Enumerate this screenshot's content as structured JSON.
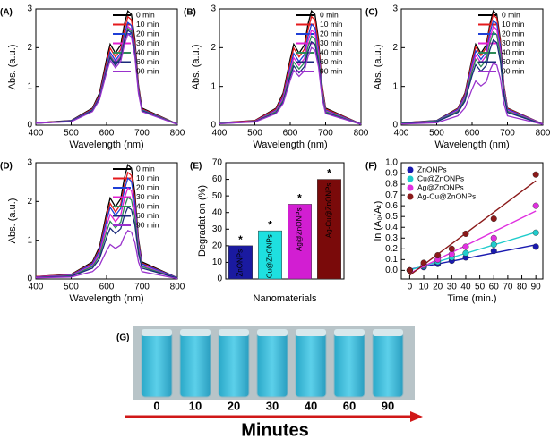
{
  "chart_data": [
    {
      "type": "line",
      "label": "(A)",
      "xlabel": "Wavelength (nm)",
      "ylabel": "Abs. (a.u.)",
      "x": [
        400,
        500,
        560,
        580,
        600,
        610,
        625,
        640,
        650,
        660,
        670,
        680,
        690,
        700,
        800
      ],
      "xlim": [
        400,
        800
      ],
      "xticks": [
        400,
        500,
        600,
        700,
        800
      ],
      "ylim": [
        0,
        3
      ],
      "yticks": [
        0,
        1,
        2,
        3
      ],
      "legend": "top-right",
      "series": [
        {
          "name": "0 min",
          "color": "#000000",
          "values": [
            0.06,
            0.12,
            0.44,
            0.83,
            1.71,
            2.09,
            1.86,
            2.07,
            2.6,
            2.95,
            2.86,
            2.21,
            1.03,
            0.44,
            0.03
          ]
        },
        {
          "name": "10 min",
          "color": "#e41a1c",
          "values": [
            0.06,
            0.11,
            0.42,
            0.78,
            1.62,
            1.99,
            1.76,
            1.96,
            2.46,
            2.8,
            2.72,
            2.1,
            0.98,
            0.42,
            0.03
          ]
        },
        {
          "name": "20 min",
          "color": "#1f3fd6",
          "values": [
            0.05,
            0.11,
            0.4,
            0.74,
            1.54,
            1.88,
            1.67,
            1.86,
            2.33,
            2.65,
            2.57,
            1.99,
            0.93,
            0.4,
            0.03
          ]
        },
        {
          "name": "30 min",
          "color": "#e020d0",
          "values": [
            0.05,
            0.1,
            0.38,
            0.71,
            1.48,
            1.81,
            1.61,
            1.79,
            2.24,
            2.55,
            2.47,
            1.91,
            0.89,
            0.38,
            0.03
          ]
        },
        {
          "name": "40 min",
          "color": "#2e8b57",
          "values": [
            0.05,
            0.1,
            0.38,
            0.7,
            1.45,
            1.78,
            1.58,
            1.75,
            2.2,
            2.5,
            2.43,
            1.88,
            0.88,
            0.38,
            0.03
          ]
        },
        {
          "name": "60 min",
          "color": "#1a2a7a",
          "values": [
            0.05,
            0.1,
            0.37,
            0.69,
            1.42,
            1.74,
            1.54,
            1.72,
            2.16,
            2.45,
            2.38,
            1.84,
            0.86,
            0.37,
            0.02
          ]
        },
        {
          "name": "90 min",
          "color": "#9932cc",
          "values": [
            0.05,
            0.09,
            0.35,
            0.66,
            1.36,
            1.67,
            1.48,
            1.65,
            2.07,
            2.35,
            2.28,
            1.76,
            0.82,
            0.35,
            0.02
          ]
        }
      ]
    },
    {
      "type": "line",
      "label": "(B)",
      "xlabel": "Wavelength (nm)",
      "ylabel": "Abs. (a.u.)",
      "x": [
        400,
        500,
        560,
        580,
        600,
        610,
        625,
        640,
        650,
        660,
        670,
        680,
        690,
        700,
        800
      ],
      "xlim": [
        400,
        800
      ],
      "xticks": [
        400,
        500,
        600,
        700,
        800
      ],
      "ylim": [
        0,
        3
      ],
      "yticks": [
        0,
        1,
        2,
        3
      ],
      "legend": "top-right",
      "series": [
        {
          "name": "0 min",
          "color": "#000000",
          "values": [
            0.06,
            0.12,
            0.44,
            0.83,
            1.71,
            2.09,
            1.86,
            2.07,
            2.6,
            2.95,
            2.86,
            2.21,
            1.03,
            0.44,
            0.03
          ]
        },
        {
          "name": "10 min",
          "color": "#e41a1c",
          "values": [
            0.06,
            0.11,
            0.42,
            0.78,
            1.62,
            1.99,
            1.76,
            1.96,
            2.46,
            2.8,
            2.72,
            2.1,
            0.98,
            0.42,
            0.03
          ]
        },
        {
          "name": "20 min",
          "color": "#1f3fd6",
          "values": [
            0.05,
            0.1,
            0.39,
            0.73,
            1.51,
            1.85,
            1.64,
            1.82,
            2.29,
            2.6,
            2.52,
            1.95,
            0.91,
            0.39,
            0.03
          ]
        },
        {
          "name": "30 min",
          "color": "#e020d0",
          "values": [
            0.05,
            0.1,
            0.37,
            0.69,
            1.42,
            1.74,
            1.54,
            1.72,
            2.16,
            2.45,
            2.38,
            1.84,
            0.86,
            0.37,
            0.02
          ]
        },
        {
          "name": "40 min",
          "color": "#2e8b57",
          "values": [
            0.05,
            0.09,
            0.35,
            0.64,
            1.33,
            1.63,
            1.45,
            1.61,
            2.02,
            2.3,
            2.23,
            1.73,
            0.81,
            0.35,
            0.02
          ]
        },
        {
          "name": "60 min",
          "color": "#1a2a7a",
          "values": [
            0.04,
            0.09,
            0.32,
            0.6,
            1.25,
            1.53,
            1.35,
            1.51,
            1.89,
            2.15,
            2.09,
            1.61,
            0.75,
            0.32,
            0.02
          ]
        },
        {
          "name": "90 min",
          "color": "#9932cc",
          "values": [
            0.04,
            0.08,
            0.3,
            0.56,
            1.16,
            1.42,
            1.26,
            1.4,
            1.76,
            2.0,
            1.94,
            1.5,
            0.7,
            0.3,
            0.02
          ]
        }
      ]
    },
    {
      "type": "line",
      "label": "(C)",
      "xlabel": "Wavelength (nm)",
      "ylabel": "Abs. (a.u.)",
      "x": [
        400,
        500,
        560,
        580,
        600,
        610,
        625,
        640,
        650,
        660,
        670,
        680,
        690,
        700,
        800
      ],
      "xlim": [
        400,
        800
      ],
      "xticks": [
        400,
        500,
        600,
        700,
        800
      ],
      "ylim": [
        0,
        3
      ],
      "yticks": [
        0,
        1,
        2,
        3
      ],
      "legend": "top-right",
      "series": [
        {
          "name": "0 min",
          "color": "#000000",
          "values": [
            0.06,
            0.12,
            0.44,
            0.83,
            1.71,
            2.09,
            1.86,
            2.07,
            2.6,
            2.95,
            2.86,
            2.21,
            1.03,
            0.44,
            0.03
          ]
        },
        {
          "name": "10 min",
          "color": "#e41a1c",
          "values": [
            0.06,
            0.11,
            0.43,
            0.8,
            1.65,
            2.02,
            1.8,
            2.0,
            2.51,
            2.85,
            2.76,
            2.14,
            1.0,
            0.43,
            0.03
          ]
        },
        {
          "name": "20 min",
          "color": "#1f3fd6",
          "values": [
            0.05,
            0.11,
            0.41,
            0.76,
            1.57,
            1.92,
            1.7,
            1.89,
            2.38,
            2.7,
            2.62,
            2.03,
            0.95,
            0.41,
            0.03
          ]
        },
        {
          "name": "30 min",
          "color": "#e020d0",
          "values": [
            0.05,
            0.1,
            0.38,
            0.71,
            1.48,
            1.81,
            1.61,
            1.79,
            2.24,
            2.55,
            2.47,
            1.91,
            0.89,
            0.38,
            0.03
          ]
        },
        {
          "name": "40 min",
          "color": "#2e8b57",
          "values": [
            0.05,
            0.1,
            0.36,
            0.67,
            1.39,
            1.7,
            1.51,
            1.68,
            2.11,
            2.4,
            2.33,
            1.8,
            0.84,
            0.36,
            0.02
          ]
        },
        {
          "name": "60 min",
          "color": "#1a2a7a",
          "values": [
            0.04,
            0.09,
            0.33,
            0.62,
            1.28,
            1.56,
            1.39,
            1.54,
            1.94,
            2.2,
            2.13,
            1.65,
            0.77,
            0.33,
            0.02
          ]
        },
        {
          "name": "90 min",
          "color": "#9932cc",
          "values": [
            0.03,
            0.06,
            0.24,
            0.45,
            0.93,
            1.14,
            1.01,
            1.12,
            1.41,
            1.6,
            1.55,
            1.2,
            0.56,
            0.24,
            0.02
          ]
        }
      ]
    },
    {
      "type": "line",
      "label": "(D)",
      "xlabel": "Wavelength (nm)",
      "ylabel": "Abs. (a.u.)",
      "x": [
        400,
        500,
        560,
        580,
        600,
        610,
        625,
        640,
        650,
        660,
        670,
        680,
        690,
        700,
        800
      ],
      "xlim": [
        400,
        800
      ],
      "xticks": [
        400,
        500,
        600,
        700,
        800
      ],
      "ylim": [
        0,
        3
      ],
      "yticks": [
        0,
        1,
        2,
        3
      ],
      "legend": "top-right",
      "series": [
        {
          "name": "0 min",
          "color": "#000000",
          "values": [
            0.06,
            0.12,
            0.44,
            0.83,
            1.71,
            2.09,
            1.86,
            2.07,
            2.6,
            2.95,
            2.86,
            2.21,
            1.03,
            0.44,
            0.03
          ]
        },
        {
          "name": "10 min",
          "color": "#e41a1c",
          "values": [
            0.06,
            0.11,
            0.41,
            0.77,
            1.6,
            1.95,
            1.73,
            1.93,
            2.42,
            2.75,
            2.67,
            2.06,
            0.96,
            0.41,
            0.03
          ]
        },
        {
          "name": "20 min",
          "color": "#1f3fd6",
          "values": [
            0.05,
            0.1,
            0.39,
            0.73,
            1.51,
            1.85,
            1.64,
            1.82,
            2.29,
            2.6,
            2.52,
            1.95,
            0.91,
            0.39,
            0.03
          ]
        },
        {
          "name": "30 min",
          "color": "#e020d0",
          "values": [
            0.05,
            0.09,
            0.35,
            0.66,
            1.36,
            1.67,
            1.48,
            1.65,
            2.07,
            2.35,
            2.28,
            1.76,
            0.82,
            0.35,
            0.02
          ]
        },
        {
          "name": "40 min",
          "color": "#2e8b57",
          "values": [
            0.04,
            0.08,
            0.32,
            0.59,
            1.22,
            1.49,
            1.32,
            1.47,
            1.85,
            2.1,
            2.04,
            1.58,
            0.74,
            0.32,
            0.02
          ]
        },
        {
          "name": "60 min",
          "color": "#1a2a7a",
          "values": [
            0.04,
            0.07,
            0.28,
            0.52,
            1.07,
            1.31,
            1.17,
            1.3,
            1.63,
            1.85,
            1.79,
            1.39,
            0.65,
            0.28,
            0.02
          ]
        },
        {
          "name": "90 min",
          "color": "#9932cc",
          "values": [
            0.03,
            0.05,
            0.19,
            0.35,
            0.73,
            0.89,
            0.79,
            0.88,
            1.1,
            1.25,
            1.21,
            0.94,
            0.44,
            0.19,
            0.01
          ]
        }
      ]
    },
    {
      "type": "bar",
      "label": "(E)",
      "xlabel": "Nanomaterials",
      "ylabel": "Degradation (%)",
      "categories": [
        "ZnONPs",
        "Cu@ZnONPs",
        "Ag@ZnONPs",
        "Ag-Cu@ZnONPs"
      ],
      "values": [
        20,
        29,
        45,
        60
      ],
      "colors": [
        "#1a1aa0",
        "#1ee0e0",
        "#d21ed2",
        "#7a0a0a"
      ],
      "bar_marker": "*",
      "ylim": [
        0,
        70
      ],
      "yticks": [
        0,
        10,
        20,
        30,
        40,
        50,
        60,
        70
      ]
    },
    {
      "type": "scatter",
      "label": "(F)",
      "xlabel": "Time (min.)",
      "ylabel": "ln (A₀/Aₜ)",
      "x": [
        0,
        10,
        20,
        30,
        40,
        60,
        90
      ],
      "xlim": [
        -6,
        95
      ],
      "xticks": [
        0,
        10,
        20,
        30,
        40,
        50,
        60,
        70,
        80,
        90
      ],
      "ylim": [
        -0.08,
        1.0
      ],
      "yticks": [
        {
          "value": 0,
          "label": "0.0"
        },
        {
          "value": 0.1,
          "label": "0.1"
        },
        {
          "value": 0.2,
          "label": "0.2"
        },
        {
          "value": 0.3,
          "label": "0.3"
        },
        {
          "value": 0.4,
          "label": "0.4"
        },
        {
          "value": 0.5,
          "label": "0.5"
        },
        {
          "value": 0.6,
          "label": "0.6"
        },
        {
          "value": 0.7,
          "label": "0.7"
        },
        {
          "value": 0.8,
          "label": "0.8"
        },
        {
          "value": 0.9,
          "label": "0.9"
        },
        {
          "value": 1.0,
          "label": "1.0"
        }
      ],
      "legend": "top-left",
      "fit_lines": true,
      "series": [
        {
          "name": "ZnONPs",
          "color": "#1a1ab0",
          "values": [
            0,
            0.03,
            0.06,
            0.09,
            0.12,
            0.18,
            0.22
          ]
        },
        {
          "name": "Cu@ZnONPs",
          "color": "#20cccc",
          "values": [
            0,
            0.04,
            0.08,
            0.12,
            0.16,
            0.24,
            0.35
          ]
        },
        {
          "name": "Ag@ZnONPs",
          "color": "#e030e0",
          "values": [
            0,
            0.05,
            0.1,
            0.15,
            0.22,
            0.3,
            0.6
          ]
        },
        {
          "name": "Ag-Cu@ZnONPs",
          "color": "#8b1a1a",
          "values": [
            0,
            0.07,
            0.14,
            0.2,
            0.34,
            0.48,
            0.89
          ]
        }
      ]
    }
  ],
  "photo": {
    "label": "(G)",
    "time_labels": [
      "0",
      "10",
      "20",
      "30",
      "40",
      "60",
      "90"
    ],
    "caption": "Minutes"
  }
}
